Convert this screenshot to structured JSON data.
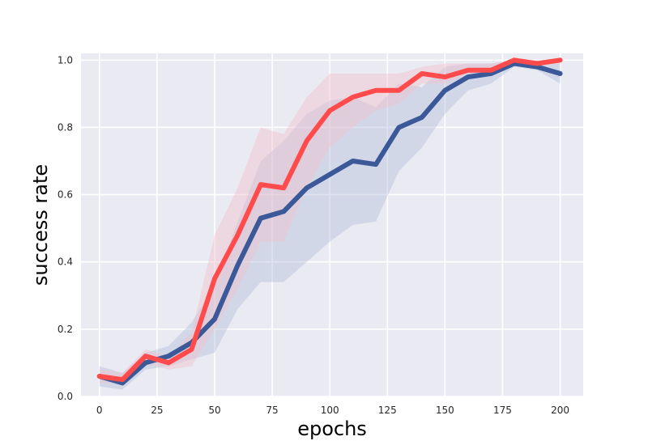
{
  "chart_data": {
    "type": "line",
    "title": "",
    "xlabel": "epochs",
    "ylabel": "success rate",
    "xlim": [
      -8,
      210
    ],
    "ylim": [
      0,
      1.02
    ],
    "xticks": [
      0,
      25,
      50,
      75,
      100,
      125,
      150,
      175,
      200
    ],
    "xtick_labels": [
      "0",
      "25",
      "50",
      "75",
      "100",
      "125",
      "150",
      "175",
      "200"
    ],
    "yticks": [
      0.0,
      0.2,
      0.4,
      0.6,
      0.8,
      1.0
    ],
    "ytick_labels": [
      "0.0",
      "0.2",
      "0.4",
      "0.6",
      "0.8",
      "1.0"
    ],
    "grid": true,
    "legend": "none",
    "x": [
      0,
      10,
      20,
      30,
      40,
      50,
      60,
      70,
      80,
      90,
      100,
      110,
      120,
      130,
      140,
      150,
      160,
      170,
      180,
      190,
      200
    ],
    "series": [
      {
        "color": "#3b5998",
        "band_color": "#b5c2dc",
        "values": [
          0.06,
          0.04,
          0.1,
          0.12,
          0.16,
          0.23,
          0.39,
          0.53,
          0.55,
          0.62,
          0.66,
          0.7,
          0.69,
          0.8,
          0.83,
          0.91,
          0.95,
          0.96,
          0.99,
          0.98,
          0.96
        ],
        "lower": [
          0.03,
          0.02,
          0.08,
          0.09,
          0.11,
          0.13,
          0.26,
          0.34,
          0.34,
          0.4,
          0.46,
          0.51,
          0.52,
          0.67,
          0.74,
          0.84,
          0.91,
          0.93,
          0.98,
          0.97,
          0.93
        ],
        "upper": [
          0.09,
          0.07,
          0.13,
          0.15,
          0.22,
          0.33,
          0.52,
          0.7,
          0.76,
          0.84,
          0.88,
          0.89,
          0.86,
          0.93,
          0.92,
          0.98,
          0.99,
          0.99,
          1.0,
          0.99,
          0.99
        ]
      },
      {
        "color": "#ff4b4b",
        "band_color": "#f2c2cd",
        "values": [
          0.06,
          0.05,
          0.12,
          0.1,
          0.14,
          0.35,
          0.48,
          0.63,
          0.62,
          0.76,
          0.85,
          0.89,
          0.91,
          0.91,
          0.96,
          0.95,
          0.97,
          0.97,
          1.0,
          0.99,
          1.0
        ],
        "lower": [
          0.04,
          0.04,
          0.1,
          0.08,
          0.09,
          0.2,
          0.32,
          0.46,
          0.46,
          0.62,
          0.74,
          0.8,
          0.85,
          0.87,
          0.93,
          0.93,
          0.96,
          0.96,
          0.99,
          0.98,
          0.99
        ],
        "upper": [
          0.08,
          0.07,
          0.14,
          0.12,
          0.19,
          0.48,
          0.62,
          0.8,
          0.78,
          0.89,
          0.96,
          0.96,
          0.96,
          0.96,
          0.98,
          0.99,
          0.99,
          0.99,
          1.0,
          1.0,
          1.0
        ]
      }
    ]
  }
}
